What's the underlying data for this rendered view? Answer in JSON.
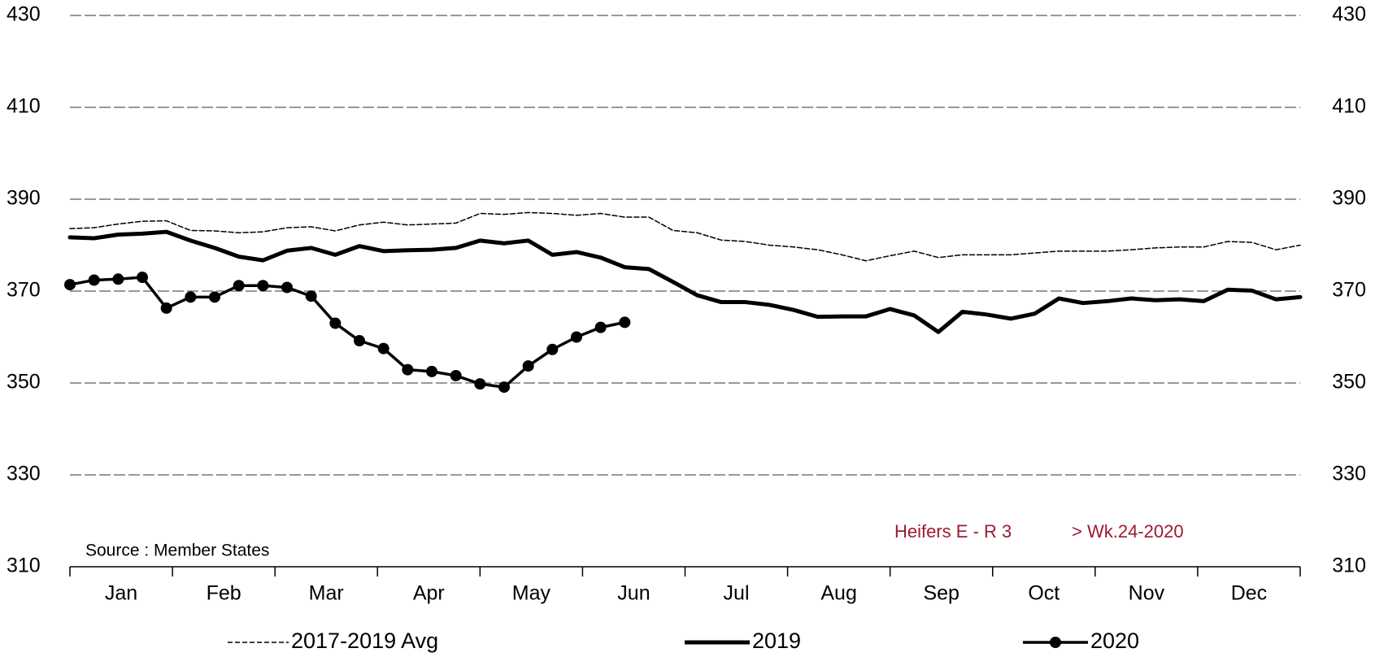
{
  "chart_data": {
    "type": "line",
    "source": "Source : Member States",
    "annotations": [
      "Heifers E - R 3",
      "> Wk.24-2020"
    ],
    "x": [
      1,
      2,
      3,
      4,
      5,
      6,
      7,
      8,
      9,
      10,
      11,
      12,
      13,
      14,
      15,
      16,
      17,
      18,
      19,
      20,
      21,
      22,
      23,
      24,
      25,
      26,
      27,
      28,
      29,
      30,
      31,
      32,
      33,
      34,
      35,
      36,
      37,
      38,
      39,
      40,
      41,
      42,
      43,
      44,
      45,
      46,
      47,
      48,
      49,
      50,
      51,
      52
    ],
    "xlim": [
      1,
      52
    ],
    "xticks": [
      {
        "value": 3.125,
        "label": "Jan"
      },
      {
        "value": 7.375,
        "label": "Feb"
      },
      {
        "value": 11.625,
        "label": "Mar"
      },
      {
        "value": 15.875,
        "label": "Apr"
      },
      {
        "value": 20.125,
        "label": "May"
      },
      {
        "value": 24.375,
        "label": "Jun"
      },
      {
        "value": 28.625,
        "label": "Jul"
      },
      {
        "value": 32.875,
        "label": "Aug"
      },
      {
        "value": 37.125,
        "label": "Sep"
      },
      {
        "value": 41.375,
        "label": "Oct"
      },
      {
        "value": 45.625,
        "label": "Nov"
      },
      {
        "value": 49.875,
        "label": "Dec"
      }
    ],
    "ylim": [
      310,
      430
    ],
    "yticks": [
      310,
      330,
      350,
      370,
      390,
      410,
      430
    ],
    "y2lim": [
      310,
      430
    ],
    "y2ticks": [
      310,
      330,
      350,
      370,
      390,
      410,
      430
    ],
    "grid": true,
    "series": [
      {
        "name": "2017-2019 Avg",
        "color": "#000000",
        "style": "dashed",
        "width": 1.5,
        "values": [
          383.6,
          383.8,
          384.6,
          385.2,
          385.3,
          383.2,
          383.1,
          382.7,
          382.9,
          383.8,
          384,
          383.1,
          384.4,
          385,
          384.4,
          384.6,
          384.8,
          386.9,
          386.7,
          387.1,
          386.9,
          386.5,
          386.9,
          386.1,
          386.1,
          383.2,
          382.7,
          381.1,
          380.8,
          380,
          379.6,
          379,
          377.9,
          376.6,
          377.7,
          378.7,
          377.3,
          377.9,
          377.9,
          377.9,
          378.3,
          378.7,
          378.7,
          378.7,
          379,
          379.4,
          379.6,
          379.6,
          380.8,
          380.6,
          379,
          380
        ]
      },
      {
        "name": "2019",
        "color": "#000000",
        "style": "solid",
        "width": 5,
        "values": [
          381.7,
          381.5,
          382.3,
          382.5,
          382.9,
          381,
          379.4,
          377.5,
          376.7,
          378.8,
          379.4,
          377.9,
          379.8,
          378.7,
          378.9,
          379,
          379.4,
          381,
          380.4,
          381,
          377.9,
          378.5,
          377.3,
          375.2,
          374.8,
          372,
          369.1,
          367.6,
          367.6,
          367,
          365.9,
          364.4,
          364.5,
          364.5,
          366.1,
          364.7,
          361.1,
          365.5,
          364.9,
          364,
          365.1,
          368.4,
          367.4,
          367.8,
          368.4,
          368,
          368.2,
          367.8,
          370.3,
          370.1,
          368.2,
          368.7
        ]
      },
      {
        "name": "2020",
        "color": "#000000",
        "style": "markers",
        "width": 3.5,
        "values": [
          371.4,
          372.4,
          372.6,
          373,
          366.3,
          368.7,
          368.7,
          371.2,
          371.2,
          370.8,
          368.9,
          363,
          359.2,
          357.5,
          352.9,
          352.5,
          351.6,
          349.8,
          349.1,
          353.7,
          357.3,
          360,
          362.1,
          363.2,
          null,
          null,
          null,
          null,
          null,
          null,
          null,
          null,
          null,
          null,
          null,
          null,
          null,
          null,
          null,
          null,
          null,
          null,
          null,
          null,
          null,
          null,
          null,
          null,
          null,
          null,
          null,
          null
        ]
      }
    ]
  }
}
